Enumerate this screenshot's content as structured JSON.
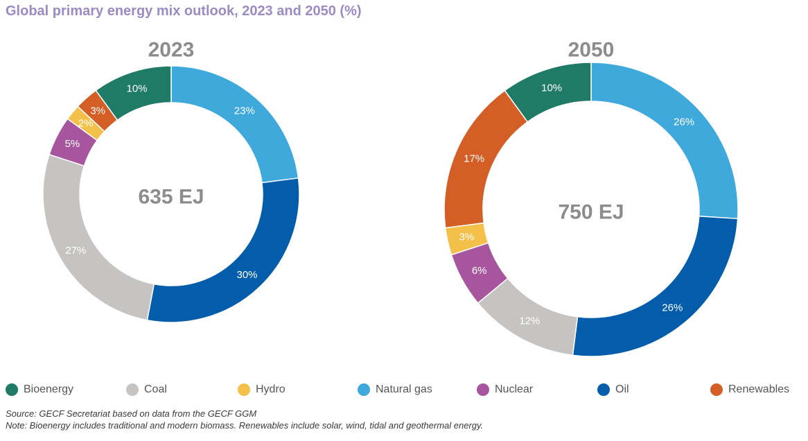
{
  "title": "Global primary energy mix outlook, 2023 and 2050 (%)",
  "chart_data": [
    {
      "type": "pie",
      "donut": true,
      "year_label": "2023",
      "center_label": "635 EJ",
      "categories": [
        "Natural gas",
        "Oil",
        "Coal",
        "Nuclear",
        "Hydro",
        "Renewables",
        "Bioenergy"
      ],
      "values": [
        23,
        30,
        27,
        5,
        2,
        3,
        10
      ],
      "labels": [
        "23%",
        "30%",
        "27%",
        "5%",
        "2%",
        "3%",
        "10%"
      ]
    },
    {
      "type": "pie",
      "donut": true,
      "year_label": "2050",
      "center_label": "750 EJ",
      "categories": [
        "Natural gas",
        "Oil",
        "Coal",
        "Nuclear",
        "Hydro",
        "Renewables",
        "Bioenergy"
      ],
      "values": [
        26,
        26,
        12,
        6,
        3,
        17,
        10
      ],
      "labels": [
        "26%",
        "26%",
        "12%",
        "6%",
        "3%",
        "17%",
        "10%"
      ]
    }
  ],
  "legend": [
    {
      "label": "Bioenergy",
      "color": "#1f7a66"
    },
    {
      "label": "Coal",
      "color": "#c6c4c3"
    },
    {
      "label": "Hydro",
      "color": "#f3c04a"
    },
    {
      "label": "Natural gas",
      "color": "#3fa9dc"
    },
    {
      "label": "Nuclear",
      "color": "#a7569d"
    },
    {
      "label": "Oil",
      "color": "#045daa"
    },
    {
      "label": "Renewables",
      "color": "#d35f26"
    }
  ],
  "colors": {
    "Bioenergy": "#1f7a66",
    "Coal": "#c6c4c3",
    "Hydro": "#f3c04a",
    "Natural gas": "#3fa9dc",
    "Nuclear": "#a7569d",
    "Oil": "#045daa",
    "Renewables": "#d35f26",
    "center_text": "#8c8c8c",
    "year_text": "#8c8c8c",
    "title": "#9a8bc2"
  },
  "notes": {
    "source": "Source: GECF Secretariat based on data from the GECF GGM",
    "note": "Note: Bioenergy includes traditional and modern biomass. Renewables include solar, wind, tidal and geothermal energy."
  }
}
